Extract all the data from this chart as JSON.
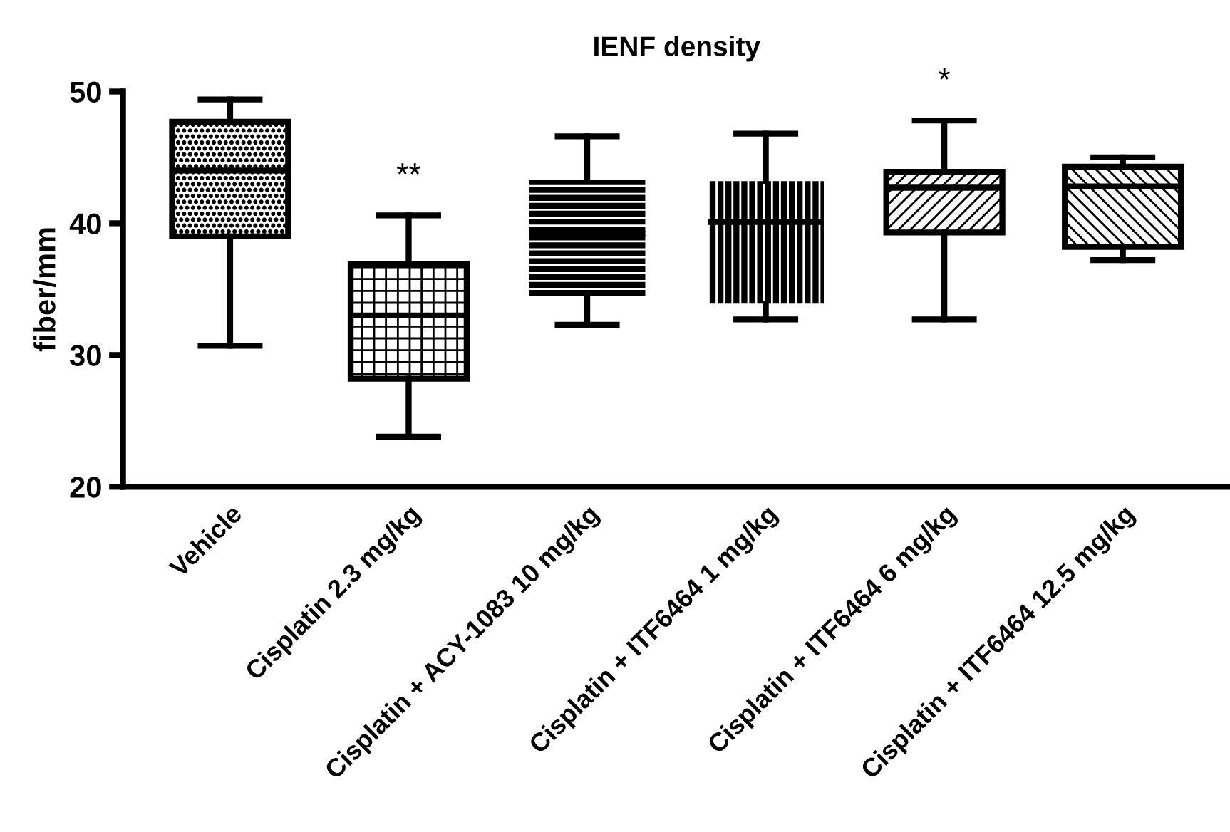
{
  "chart_data": {
    "type": "box",
    "title": "IENF density",
    "ylabel": "fiber/mm",
    "categories": [
      "Vehicle",
      "Cisplatin 2.3 mg/kg",
      "Cisplatin + ACY-1083 10 mg/kg",
      "Cisplatin + ITF6464 1 mg/kg",
      "Cisplatin + ITF6464 6 mg/kg",
      "Cisplatin + ITF6464 12.5 mg/kg"
    ],
    "boxes": [
      {
        "low": 30.7,
        "q1": 39.0,
        "median": 44.0,
        "q3": 47.7,
        "high": 49.4
      },
      {
        "low": 23.8,
        "q1": 28.2,
        "median": 33.0,
        "q3": 36.9,
        "high": 40.6
      },
      {
        "low": 32.3,
        "q1": 34.5,
        "median": 39.2,
        "q3": 43.3,
        "high": 46.6
      },
      {
        "low": 32.7,
        "q1": 33.9,
        "median": 40.1,
        "q3": 43.2,
        "high": 46.8
      },
      {
        "low": 32.7,
        "q1": 39.3,
        "median": 42.7,
        "q3": 43.9,
        "high": 47.8
      },
      {
        "low": 37.2,
        "q1": 38.2,
        "median": 42.8,
        "q3": 44.3,
        "high": 45.0
      }
    ],
    "color": "#000000",
    "ylim": [
      20,
      50
    ],
    "yticks": [
      20,
      30,
      40,
      50
    ],
    "grid": false,
    "annotations": [
      "**",
      "*"
    ]
  }
}
